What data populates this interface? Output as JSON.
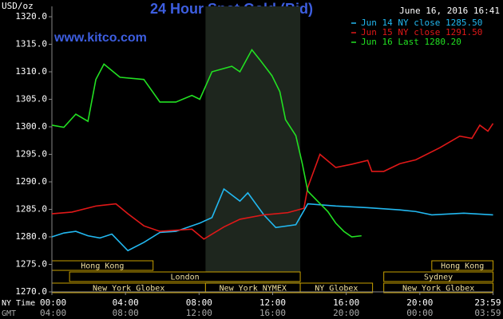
{
  "chart_data": {
    "type": "line",
    "title": "24 Hour Spot Gold (Bid)",
    "timestamp": "June 16, 2016 16:41",
    "website": "www.kitco.com",
    "y_label": "USD/oz",
    "x_label": "NY Time",
    "x2_label": "GMT",
    "xlim": [
      0,
      24
    ],
    "ylim": [
      1270,
      1320
    ],
    "xticks": [
      {
        "value": 0,
        "label": "00:00"
      },
      {
        "value": 4,
        "label": "04:00"
      },
      {
        "value": 8,
        "label": "08:00"
      },
      {
        "value": 12,
        "label": "12:00"
      },
      {
        "value": 16,
        "label": "16:00"
      },
      {
        "value": 20,
        "label": "20:00"
      },
      {
        "value": 23.98,
        "label": "23:59"
      }
    ],
    "gmt_labels": [
      "04:00",
      "08:00",
      "12:00",
      "16:00",
      "20:00",
      "00:00",
      "03:59"
    ],
    "yticks": [
      {
        "value": 1270,
        "label": "1270.0"
      },
      {
        "value": 1275,
        "label": "1275.0"
      },
      {
        "value": 1280,
        "label": "1280.0"
      },
      {
        "value": 1285,
        "label": "1285.0"
      },
      {
        "value": 1290,
        "label": "1290.0"
      },
      {
        "value": 1295,
        "label": "1295.0"
      },
      {
        "value": 1300,
        "label": "1300.0"
      },
      {
        "value": 1305,
        "label": "1305.0"
      },
      {
        "value": 1310,
        "label": "1310.0"
      },
      {
        "value": 1315,
        "label": "1315.0"
      },
      {
        "value": 1320,
        "label": "1320.0"
      }
    ],
    "series": [
      {
        "name": "Jun 14 NY close 1285.50",
        "color": "#22b8f0",
        "x": [
          0,
          0.65,
          1.3,
          1.96,
          2.61,
          3.26,
          4.13,
          5,
          5.87,
          6.74,
          8.04,
          8.7,
          9.35,
          10.22,
          10.65,
          11.52,
          12.17,
          13.26,
          13.91,
          15.43,
          17.17,
          18.91,
          19.78,
          20.65,
          22.39,
          23.98
        ],
        "values": [
          1280,
          1280.7,
          1281,
          1280.2,
          1279.8,
          1280.5,
          1277.5,
          1279,
          1280.8,
          1281,
          1282.5,
          1283.5,
          1288.7,
          1286.5,
          1288,
          1284,
          1281.7,
          1282.2,
          1286,
          1285.6,
          1285.3,
          1284.9,
          1284.6,
          1284,
          1284.3,
          1284
        ]
      },
      {
        "name": "Jun 15 NY close 1291.50",
        "color": "#e01818",
        "x": [
          0,
          1.09,
          2.39,
          3.48,
          4.13,
          5,
          5.87,
          7.61,
          8.26,
          9.35,
          10.22,
          11.52,
          12.83,
          13.7,
          13.91,
          14.57,
          15.43,
          16.3,
          17.17,
          17.39,
          18.04,
          18.91,
          19.78,
          21.09,
          22.17,
          22.83,
          23.26,
          23.7,
          23.98
        ],
        "values": [
          1284.2,
          1284.5,
          1285.6,
          1286,
          1284.2,
          1282,
          1281,
          1281.4,
          1279.6,
          1281.8,
          1283.2,
          1284,
          1284.4,
          1285.2,
          1289,
          1295,
          1292.6,
          1293.2,
          1293.9,
          1291.9,
          1291.9,
          1293.3,
          1294,
          1296.2,
          1298.3,
          1297.9,
          1300.3,
          1299.2,
          1300.6
        ]
      },
      {
        "name": "Jun 16 Last 1280.20",
        "color": "#22e022",
        "x": [
          0,
          0.65,
          1.3,
          1.96,
          2.39,
          2.83,
          3.7,
          5,
          5.87,
          6.74,
          7.61,
          8.04,
          8.7,
          9.78,
          10.22,
          10.87,
          11.3,
          11.96,
          12.39,
          12.7,
          13.26,
          13.61,
          13.91,
          14.35,
          15,
          15.43,
          15.87,
          16.3,
          16.83
        ],
        "values": [
          1300.3,
          1299.9,
          1302.3,
          1301,
          1308.6,
          1311.4,
          1309,
          1308.6,
          1304.5,
          1304.5,
          1305.7,
          1305,
          1310,
          1311,
          1310,
          1314,
          1312.2,
          1309.3,
          1306.4,
          1301.3,
          1298.4,
          1293.3,
          1288.3,
          1286.8,
          1284.6,
          1282.5,
          1281,
          1280,
          1280.2
        ]
      }
    ],
    "sessions": {
      "asia": [
        {
          "label": "Hong Kong",
          "start": 0,
          "end": 5.5
        },
        {
          "label": "Hong Kong",
          "start": 20.65,
          "end": 23.98
        }
      ],
      "europe": [
        {
          "label": "London",
          "start": 0.96,
          "end": 13.5
        },
        {
          "label": "Sydney",
          "start": 18.04,
          "end": 23.98
        }
      ],
      "america": [
        {
          "label": "New York Globex",
          "start": 0,
          "end": 8.35
        },
        {
          "label": "New York NYMEX",
          "start": 8.35,
          "end": 13.5,
          "highlight": true
        },
        {
          "label": "NY Globex",
          "start": 13.5,
          "end": 17.43
        },
        {
          "label": "New York Globex",
          "start": 18.04,
          "end": 23.98
        }
      ]
    }
  }
}
